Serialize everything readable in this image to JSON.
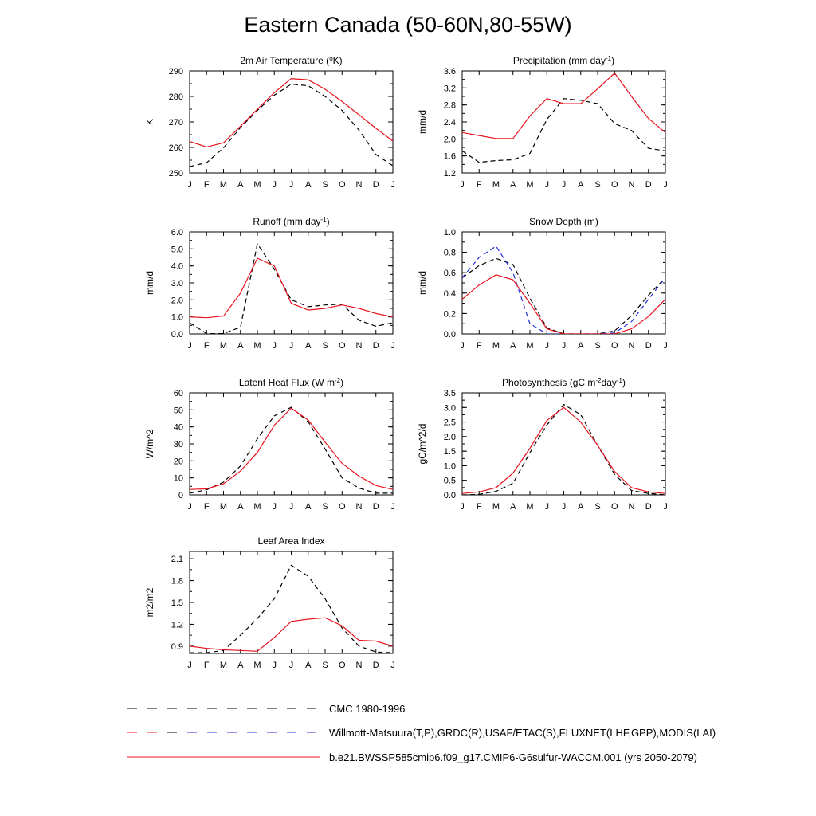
{
  "page_title": "Eastern Canada (50-60N,80-55W)",
  "colors": {
    "model": "#e8141e",
    "obs_primary": "#000000",
    "obs_secondary": "#1f2fd6"
  },
  "legend": {
    "items": [
      {
        "label": "CMC 1980-1996",
        "style": "dashed-black"
      },
      {
        "label": "Willmott-Matsuura(T,P),GRDC(R),USAF/ETAC(S),FLUXNET(LHF,GPP),MODIS(LAI)",
        "style": "dashed-red-blue"
      },
      {
        "label": "b.e21.BWSSP585cmip6.f09_g17.CMIP6-G6sulfur-WACCM.001 (yrs 2050-2079)",
        "style": "solid-red"
      }
    ]
  },
  "chart_data": [
    {
      "type": "line",
      "title": "2m Air Temperature (°K)",
      "ylabel": "K",
      "ylim": [
        250,
        290
      ],
      "yticks": [
        250,
        260,
        270,
        280,
        290
      ],
      "ytick_labels": [
        "250",
        "260",
        "270",
        "280",
        "290"
      ],
      "x": [
        "J",
        "F",
        "M",
        "A",
        "M",
        "J",
        "J",
        "A",
        "S",
        "O",
        "N",
        "D",
        "J"
      ],
      "series": [
        {
          "style": "solid-red",
          "values": [
            262.3,
            260.2,
            261.8,
            268.3,
            275.0,
            281.5,
            287.0,
            286.5,
            282.8,
            278.0,
            272.8,
            267.5,
            262.5
          ]
        },
        {
          "style": "dashed-black",
          "values": [
            252.5,
            254.0,
            259.8,
            267.8,
            274.5,
            280.5,
            284.8,
            284.2,
            280.0,
            274.5,
            266.8,
            257.2,
            252.8
          ]
        }
      ]
    },
    {
      "type": "line",
      "title": "Precipitation (mm day-1)",
      "ylabel": "mm/d",
      "ylim": [
        1.2,
        3.6
      ],
      "yticks": [
        1.2,
        1.6,
        2.0,
        2.4,
        2.8,
        3.2,
        3.6
      ],
      "ytick_labels": [
        "1.2",
        "1.6",
        "2.0",
        "2.4",
        "2.8",
        "3.2",
        "3.6"
      ],
      "x": [
        "J",
        "F",
        "M",
        "A",
        "M",
        "J",
        "J",
        "A",
        "S",
        "O",
        "N",
        "D",
        "J"
      ],
      "series": [
        {
          "style": "solid-red",
          "values": [
            2.15,
            2.08,
            2.01,
            2.01,
            2.54,
            2.95,
            2.83,
            2.83,
            3.18,
            3.55,
            3.0,
            2.48,
            2.15
          ]
        },
        {
          "style": "dashed-black",
          "values": [
            1.72,
            1.45,
            1.49,
            1.51,
            1.66,
            2.46,
            2.95,
            2.91,
            2.83,
            2.36,
            2.2,
            1.78,
            1.72
          ]
        }
      ]
    },
    {
      "type": "line",
      "title": "Runoff (mm day-1)",
      "ylabel": "mm/d",
      "ylim": [
        0,
        6
      ],
      "yticks": [
        0,
        1,
        2,
        3,
        4,
        5,
        6
      ],
      "ytick_labels": [
        "0.0",
        "1.0",
        "2.0",
        "3.0",
        "4.0",
        "5.0",
        "6.0"
      ],
      "x": [
        "J",
        "F",
        "M",
        "A",
        "M",
        "J",
        "J",
        "A",
        "S",
        "O",
        "N",
        "D",
        "J"
      ],
      "series": [
        {
          "style": "solid-red",
          "values": [
            1.0,
            0.95,
            1.05,
            2.4,
            4.45,
            4.0,
            1.8,
            1.4,
            1.5,
            1.7,
            1.5,
            1.2,
            1.0
          ]
        },
        {
          "style": "dashed-black",
          "values": [
            0.65,
            0.02,
            0.02,
            0.4,
            5.3,
            3.8,
            2.0,
            1.6,
            1.7,
            1.75,
            0.8,
            0.45,
            0.65
          ]
        }
      ]
    },
    {
      "type": "line",
      "title": "Snow Depth (m)",
      "ylabel": "mm/d",
      "ylim": [
        0,
        1
      ],
      "yticks": [
        0,
        0.2,
        0.4,
        0.6,
        0.8,
        1.0
      ],
      "ytick_labels": [
        "0.0",
        "0.2",
        "0.4",
        "0.6",
        "0.8",
        "1.0"
      ],
      "x": [
        "J",
        "F",
        "M",
        "A",
        "M",
        "J",
        "J",
        "A",
        "S",
        "O",
        "N",
        "D",
        "J"
      ],
      "series": [
        {
          "style": "solid-red",
          "values": [
            0.34,
            0.48,
            0.58,
            0.53,
            0.3,
            0.05,
            0.0,
            0.0,
            0.0,
            0.0,
            0.05,
            0.17,
            0.34
          ]
        },
        {
          "style": "dashed-black",
          "values": [
            0.55,
            0.67,
            0.74,
            0.68,
            0.35,
            0.06,
            0.0,
            0.0,
            0.0,
            0.03,
            0.18,
            0.38,
            0.55
          ]
        },
        {
          "style": "dashed-blue",
          "values": [
            0.55,
            0.75,
            0.86,
            0.6,
            0.1,
            0.0,
            0.0,
            0.0,
            0.0,
            0.01,
            0.12,
            0.34,
            0.55
          ]
        }
      ]
    },
    {
      "type": "line",
      "title": "Latent Heat Flux (W m-2)",
      "ylabel": "W/m^2",
      "ylim": [
        0,
        60
      ],
      "yticks": [
        0,
        10,
        20,
        30,
        40,
        50,
        60
      ],
      "ytick_labels": [
        "0",
        "10",
        "20",
        "30",
        "40",
        "50",
        "60"
      ],
      "x": [
        "J",
        "F",
        "M",
        "A",
        "M",
        "J",
        "J",
        "A",
        "S",
        "O",
        "N",
        "D",
        "J"
      ],
      "series": [
        {
          "style": "solid-red",
          "values": [
            3.2,
            3.5,
            6.5,
            14.0,
            25.0,
            41.0,
            51.0,
            44.0,
            31.0,
            18.5,
            11.0,
            5.5,
            3.2
          ]
        },
        {
          "style": "dashed-black",
          "values": [
            1.0,
            3.0,
            7.5,
            17.0,
            33.0,
            46.5,
            51.5,
            43.0,
            27.0,
            10.0,
            4.0,
            1.0,
            1.0
          ]
        }
      ]
    },
    {
      "type": "line",
      "title": "Photosynthesis (gC m-2day-1)",
      "ylabel": "gC/m^2/d",
      "ylim": [
        0,
        3.5
      ],
      "yticks": [
        0,
        0.5,
        1.0,
        1.5,
        2.0,
        2.5,
        3.0,
        3.5
      ],
      "ytick_labels": [
        "0.0",
        "0.5",
        "1.0",
        "1.5",
        "2.0",
        "2.5",
        "3.0",
        "3.5"
      ],
      "x": [
        "J",
        "F",
        "M",
        "A",
        "M",
        "J",
        "J",
        "A",
        "S",
        "O",
        "N",
        "D",
        "J"
      ],
      "series": [
        {
          "style": "solid-red",
          "values": [
            0.05,
            0.1,
            0.25,
            0.75,
            1.6,
            2.55,
            3.0,
            2.5,
            1.7,
            0.8,
            0.25,
            0.1,
            0.05
          ]
        },
        {
          "style": "dashed-black",
          "values": [
            0.0,
            0.02,
            0.12,
            0.4,
            1.45,
            2.4,
            3.1,
            2.75,
            1.7,
            0.7,
            0.15,
            0.05,
            0.0
          ]
        }
      ]
    },
    {
      "type": "line",
      "title": "Leaf Area Index",
      "ylabel": "m2/m2",
      "ylim": [
        0.8,
        2.2
      ],
      "yticks": [
        0.9,
        1.2,
        1.5,
        1.8,
        2.1
      ],
      "ytick_labels": [
        "0.9",
        "1.2",
        "1.5",
        "1.8",
        "2.1"
      ],
      "x": [
        "J",
        "F",
        "M",
        "A",
        "M",
        "J",
        "J",
        "A",
        "S",
        "O",
        "N",
        "D",
        "J"
      ],
      "series": [
        {
          "style": "solid-red",
          "values": [
            0.9,
            0.87,
            0.85,
            0.84,
            0.83,
            1.02,
            1.24,
            1.27,
            1.29,
            1.18,
            0.98,
            0.97,
            0.9
          ]
        },
        {
          "style": "dashed-black",
          "values": [
            0.81,
            0.81,
            0.84,
            1.05,
            1.28,
            1.55,
            2.01,
            1.86,
            1.55,
            1.15,
            0.9,
            0.82,
            0.81
          ]
        }
      ]
    }
  ]
}
